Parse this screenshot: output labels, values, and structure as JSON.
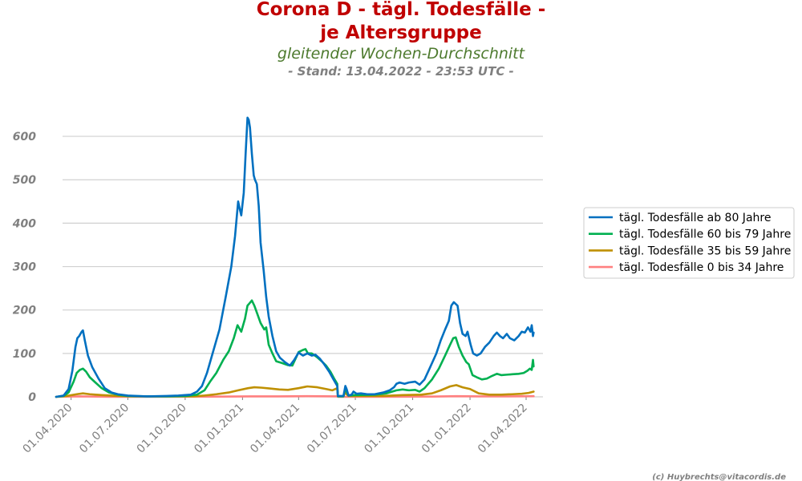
{
  "chart_data": {
    "type": "line",
    "title_line1": "Corona D - tägl. Todesfälle -",
    "title_line2": "je Altersgruppe",
    "subtitle": "gleitender Wochen-Durchschnitt",
    "stand": "- Stand: 13.04.2022 - 23:53 UTC -",
    "credit": "(c) Huybrechts@vitacordis.de",
    "xlabel": "",
    "ylabel": "",
    "ylim": [
      0,
      650
    ],
    "xlim": [
      "2020-03-08",
      "2022-04-28"
    ],
    "y_ticks": [
      "0",
      "100",
      "200",
      "300",
      "400",
      "500",
      "600"
    ],
    "x_ticks": [
      "01.04.2020",
      "01.07.2020",
      "01.10.2020",
      "01.01.2021",
      "01.04.2021",
      "01.07.2021",
      "01.10.2021",
      "01.01.2022",
      "01.04.2022"
    ],
    "x_tick_dates": [
      "2020-04-01",
      "2020-07-01",
      "2020-10-01",
      "2021-01-01",
      "2021-04-01",
      "2021-07-01",
      "2021-10-01",
      "2022-01-01",
      "2022-04-01"
    ],
    "grid": true,
    "legend_position": "right",
    "series": [
      {
        "name": "tägl. Todesfälle ab 80 Jahre",
        "color": "#0070c0",
        "points": [
          [
            "2020-03-08",
            0
          ],
          [
            "2020-03-20",
            3
          ],
          [
            "2020-03-28",
            18
          ],
          [
            "2020-04-03",
            60
          ],
          [
            "2020-04-08",
            115
          ],
          [
            "2020-04-11",
            135
          ],
          [
            "2020-04-14",
            140
          ],
          [
            "2020-04-18",
            150
          ],
          [
            "2020-04-20",
            153
          ],
          [
            "2020-04-23",
            130
          ],
          [
            "2020-04-28",
            95
          ],
          [
            "2020-05-05",
            68
          ],
          [
            "2020-05-15",
            42
          ],
          [
            "2020-05-25",
            20
          ],
          [
            "2020-06-05",
            10
          ],
          [
            "2020-06-15",
            6
          ],
          [
            "2020-07-01",
            3
          ],
          [
            "2020-07-15",
            2
          ],
          [
            "2020-08-01",
            1
          ],
          [
            "2020-09-01",
            2
          ],
          [
            "2020-09-20",
            3
          ],
          [
            "2020-10-01",
            4
          ],
          [
            "2020-10-10",
            5
          ],
          [
            "2020-10-20",
            12
          ],
          [
            "2020-10-28",
            25
          ],
          [
            "2020-11-05",
            55
          ],
          [
            "2020-11-15",
            105
          ],
          [
            "2020-11-25",
            155
          ],
          [
            "2020-12-05",
            230
          ],
          [
            "2020-12-14",
            300
          ],
          [
            "2020-12-20",
            370
          ],
          [
            "2020-12-25",
            450
          ],
          [
            "2020-12-28",
            430
          ],
          [
            "2020-12-30",
            418
          ],
          [
            "2021-01-03",
            470
          ],
          [
            "2021-01-06",
            560
          ],
          [
            "2021-01-09",
            643
          ],
          [
            "2021-01-11",
            638
          ],
          [
            "2021-01-13",
            620
          ],
          [
            "2021-01-16",
            560
          ],
          [
            "2021-01-19",
            510
          ],
          [
            "2021-01-21",
            500
          ],
          [
            "2021-01-24",
            490
          ],
          [
            "2021-01-27",
            440
          ],
          [
            "2021-01-30",
            355
          ],
          [
            "2021-02-04",
            290
          ],
          [
            "2021-02-08",
            230
          ],
          [
            "2021-02-12",
            185
          ],
          [
            "2021-02-18",
            140
          ],
          [
            "2021-02-24",
            105
          ],
          [
            "2021-03-02",
            90
          ],
          [
            "2021-03-10",
            80
          ],
          [
            "2021-03-18",
            72
          ],
          [
            "2021-03-25",
            85
          ],
          [
            "2021-04-01",
            102
          ],
          [
            "2021-04-08",
            95
          ],
          [
            "2021-04-15",
            100
          ],
          [
            "2021-04-22",
            95
          ],
          [
            "2021-04-28",
            97
          ],
          [
            "2021-05-05",
            88
          ],
          [
            "2021-05-12",
            75
          ],
          [
            "2021-05-20",
            58
          ],
          [
            "2021-05-27",
            40
          ],
          [
            "2021-06-02",
            25
          ],
          [
            "2021-06-03",
            2
          ],
          [
            "2021-06-12",
            2
          ],
          [
            "2021-06-15",
            25
          ],
          [
            "2021-06-17",
            18
          ],
          [
            "2021-06-20",
            3
          ],
          [
            "2021-06-25",
            5
          ],
          [
            "2021-06-28",
            12
          ],
          [
            "2021-07-03",
            7
          ],
          [
            "2021-07-10",
            8
          ],
          [
            "2021-07-20",
            6
          ],
          [
            "2021-08-01",
            6
          ],
          [
            "2021-08-15",
            10
          ],
          [
            "2021-08-25",
            15
          ],
          [
            "2021-09-01",
            22
          ],
          [
            "2021-09-05",
            30
          ],
          [
            "2021-09-10",
            33
          ],
          [
            "2021-09-18",
            30
          ],
          [
            "2021-09-25",
            33
          ],
          [
            "2021-10-05",
            35
          ],
          [
            "2021-10-12",
            28
          ],
          [
            "2021-10-20",
            40
          ],
          [
            "2021-10-28",
            65
          ],
          [
            "2021-11-08",
            100
          ],
          [
            "2021-11-15",
            130
          ],
          [
            "2021-11-22",
            155
          ],
          [
            "2021-11-28",
            175
          ],
          [
            "2021-12-02",
            210
          ],
          [
            "2021-12-06",
            218
          ],
          [
            "2021-12-12",
            210
          ],
          [
            "2021-12-16",
            170
          ],
          [
            "2021-12-20",
            145
          ],
          [
            "2021-12-25",
            140
          ],
          [
            "2021-12-28",
            150
          ],
          [
            "2022-01-02",
            120
          ],
          [
            "2022-01-06",
            100
          ],
          [
            "2022-01-12",
            95
          ],
          [
            "2022-01-18",
            100
          ],
          [
            "2022-01-25",
            115
          ],
          [
            "2022-02-01",
            125
          ],
          [
            "2022-02-08",
            140
          ],
          [
            "2022-02-13",
            148
          ],
          [
            "2022-02-18",
            140
          ],
          [
            "2022-02-23",
            135
          ],
          [
            "2022-03-01",
            145
          ],
          [
            "2022-03-06",
            135
          ],
          [
            "2022-03-13",
            130
          ],
          [
            "2022-03-20",
            140
          ],
          [
            "2022-03-25",
            150
          ],
          [
            "2022-03-30",
            148
          ],
          [
            "2022-04-04",
            160
          ],
          [
            "2022-04-08",
            150
          ],
          [
            "2022-04-10",
            165
          ],
          [
            "2022-04-12",
            140
          ],
          [
            "2022-04-13",
            148
          ]
        ]
      },
      {
        "name": "tägl. Todesfälle 60 bis 79 Jahre",
        "color": "#00b050",
        "points": [
          [
            "2020-03-08",
            0
          ],
          [
            "2020-03-20",
            2
          ],
          [
            "2020-03-28",
            10
          ],
          [
            "2020-04-05",
            35
          ],
          [
            "2020-04-10",
            55
          ],
          [
            "2020-04-15",
            62
          ],
          [
            "2020-04-20",
            65
          ],
          [
            "2020-04-25",
            58
          ],
          [
            "2020-05-01",
            45
          ],
          [
            "2020-05-10",
            33
          ],
          [
            "2020-05-20",
            20
          ],
          [
            "2020-06-01",
            10
          ],
          [
            "2020-06-15",
            5
          ],
          [
            "2020-07-01",
            2
          ],
          [
            "2020-08-01",
            1
          ],
          [
            "2020-09-01",
            1
          ],
          [
            "2020-10-01",
            2
          ],
          [
            "2020-10-20",
            5
          ],
          [
            "2020-11-01",
            15
          ],
          [
            "2020-11-10",
            35
          ],
          [
            "2020-11-20",
            55
          ],
          [
            "2020-12-01",
            85
          ],
          [
            "2020-12-10",
            105
          ],
          [
            "2020-12-18",
            135
          ],
          [
            "2020-12-24",
            165
          ],
          [
            "2020-12-30",
            150
          ],
          [
            "2021-01-05",
            180
          ],
          [
            "2021-01-09",
            210
          ],
          [
            "2021-01-12",
            215
          ],
          [
            "2021-01-16",
            222
          ],
          [
            "2021-01-20",
            210
          ],
          [
            "2021-01-25",
            190
          ],
          [
            "2021-01-30",
            170
          ],
          [
            "2021-02-05",
            155
          ],
          [
            "2021-02-08",
            160
          ],
          [
            "2021-02-12",
            120
          ],
          [
            "2021-02-18",
            100
          ],
          [
            "2021-02-24",
            82
          ],
          [
            "2021-03-05",
            78
          ],
          [
            "2021-03-15",
            73
          ],
          [
            "2021-03-22",
            72
          ],
          [
            "2021-04-01",
            103
          ],
          [
            "2021-04-08",
            108
          ],
          [
            "2021-04-12",
            110
          ],
          [
            "2021-04-16",
            100
          ],
          [
            "2021-04-22",
            100
          ],
          [
            "2021-04-30",
            92
          ],
          [
            "2021-05-08",
            82
          ],
          [
            "2021-05-15",
            72
          ],
          [
            "2021-05-22",
            58
          ],
          [
            "2021-05-28",
            42
          ],
          [
            "2021-06-02",
            30
          ],
          [
            "2021-06-03",
            1
          ],
          [
            "2021-06-12",
            1
          ],
          [
            "2021-06-15",
            20
          ],
          [
            "2021-06-17",
            12
          ],
          [
            "2021-06-20",
            3
          ],
          [
            "2021-07-01",
            4
          ],
          [
            "2021-08-01",
            5
          ],
          [
            "2021-08-20",
            8
          ],
          [
            "2021-09-05",
            15
          ],
          [
            "2021-09-15",
            17
          ],
          [
            "2021-09-25",
            15
          ],
          [
            "2021-10-05",
            16
          ],
          [
            "2021-10-12",
            12
          ],
          [
            "2021-10-20",
            20
          ],
          [
            "2021-11-01",
            40
          ],
          [
            "2021-11-12",
            65
          ],
          [
            "2021-11-22",
            95
          ],
          [
            "2021-11-30",
            120
          ],
          [
            "2021-12-05",
            135
          ],
          [
            "2021-12-09",
            137
          ],
          [
            "2021-12-14",
            115
          ],
          [
            "2021-12-20",
            95
          ],
          [
            "2021-12-26",
            80
          ],
          [
            "2021-12-30",
            75
          ],
          [
            "2022-01-05",
            50
          ],
          [
            "2022-01-12",
            45
          ],
          [
            "2022-01-20",
            40
          ],
          [
            "2022-01-28",
            42
          ],
          [
            "2022-02-05",
            48
          ],
          [
            "2022-02-13",
            53
          ],
          [
            "2022-02-20",
            50
          ],
          [
            "2022-03-01",
            51
          ],
          [
            "2022-03-10",
            52
          ],
          [
            "2022-03-20",
            53
          ],
          [
            "2022-03-28",
            55
          ],
          [
            "2022-04-03",
            60
          ],
          [
            "2022-04-07",
            65
          ],
          [
            "2022-04-10",
            62
          ],
          [
            "2022-04-12",
            85
          ],
          [
            "2022-04-13",
            70
          ]
        ]
      },
      {
        "name": "tägl. Todesfälle 35 bis 59 Jahre",
        "color": "#bf9000",
        "points": [
          [
            "2020-03-08",
            0
          ],
          [
            "2020-03-25",
            2
          ],
          [
            "2020-04-10",
            6
          ],
          [
            "2020-04-20",
            8
          ],
          [
            "2020-05-01",
            6
          ],
          [
            "2020-05-20",
            4
          ],
          [
            "2020-06-15",
            2
          ],
          [
            "2020-07-15",
            1
          ],
          [
            "2020-09-01",
            1
          ],
          [
            "2020-10-15",
            1
          ],
          [
            "2020-11-01",
            3
          ],
          [
            "2020-11-20",
            6
          ],
          [
            "2020-12-10",
            10
          ],
          [
            "2020-12-25",
            15
          ],
          [
            "2021-01-10",
            20
          ],
          [
            "2021-01-20",
            22
          ],
          [
            "2021-02-01",
            21
          ],
          [
            "2021-02-15",
            19
          ],
          [
            "2021-03-01",
            17
          ],
          [
            "2021-03-15",
            16
          ],
          [
            "2021-04-01",
            20
          ],
          [
            "2021-04-15",
            24
          ],
          [
            "2021-05-01",
            22
          ],
          [
            "2021-05-15",
            18
          ],
          [
            "2021-05-25",
            15
          ],
          [
            "2021-06-02",
            20
          ],
          [
            "2021-06-03",
            1
          ],
          [
            "2021-06-12",
            1
          ],
          [
            "2021-06-15",
            12
          ],
          [
            "2021-06-17",
            6
          ],
          [
            "2021-06-20",
            2
          ],
          [
            "2021-07-15",
            2
          ],
          [
            "2021-08-15",
            2
          ],
          [
            "2021-09-15",
            4
          ],
          [
            "2021-10-15",
            5
          ],
          [
            "2021-11-01",
            8
          ],
          [
            "2021-11-15",
            15
          ],
          [
            "2021-11-30",
            24
          ],
          [
            "2021-12-10",
            27
          ],
          [
            "2021-12-20",
            22
          ],
          [
            "2022-01-01",
            18
          ],
          [
            "2022-01-15",
            8
          ],
          [
            "2022-02-01",
            5
          ],
          [
            "2022-02-20",
            5
          ],
          [
            "2022-03-10",
            6
          ],
          [
            "2022-03-25",
            7
          ],
          [
            "2022-04-05",
            9
          ],
          [
            "2022-04-13",
            12
          ]
        ]
      },
      {
        "name": "tägl. Todesfälle 0 bis 34 Jahre",
        "color": "#ff8080",
        "points": [
          [
            "2020-03-08",
            0
          ],
          [
            "2020-04-15",
            1
          ],
          [
            "2020-06-01",
            0
          ],
          [
            "2020-12-01",
            0.5
          ],
          [
            "2021-01-15",
            1
          ],
          [
            "2021-03-01",
            1
          ],
          [
            "2021-04-15",
            1.5
          ],
          [
            "2021-06-02",
            1
          ],
          [
            "2021-06-03",
            0
          ],
          [
            "2021-08-01",
            0
          ],
          [
            "2021-11-01",
            0.5
          ],
          [
            "2021-12-10",
            1.5
          ],
          [
            "2022-01-15",
            1
          ],
          [
            "2022-03-01",
            1
          ],
          [
            "2022-04-13",
            1.5
          ]
        ]
      }
    ]
  }
}
